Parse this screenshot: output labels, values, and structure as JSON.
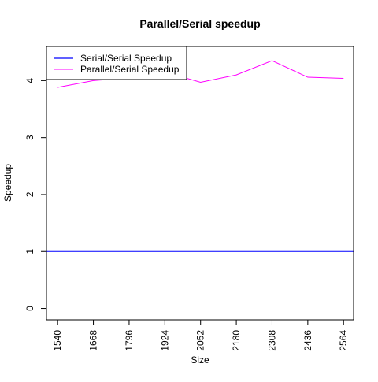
{
  "chart_data": {
    "type": "line",
    "title": "Parallel/Serial speedup",
    "xlabel": "Size",
    "ylabel": "Speedup",
    "x": [
      1540,
      1668,
      1796,
      1924,
      2052,
      2180,
      2308,
      2436,
      2564
    ],
    "x_ticks": [
      "1540",
      "1668",
      "1796",
      "1924",
      "2052",
      "2180",
      "2308",
      "2436",
      "2564"
    ],
    "y_ticks": [
      "0",
      "1",
      "2",
      "3",
      "4"
    ],
    "xlim": [
      1500,
      2600
    ],
    "ylim": [
      -0.2,
      4.6
    ],
    "grid": false,
    "legend_position": "top-left",
    "series": [
      {
        "name": "Serial/Serial Speedup",
        "color": "#0000ff",
        "values": [
          1,
          1,
          1,
          1,
          1,
          1,
          1,
          1,
          1
        ],
        "extend_full_width": true
      },
      {
        "name": "Parallel/Serial Speedup",
        "color": "#ff00ff",
        "values": [
          3.88,
          4.0,
          4.05,
          4.15,
          3.97,
          4.1,
          4.35,
          4.06,
          4.04
        ]
      }
    ]
  }
}
